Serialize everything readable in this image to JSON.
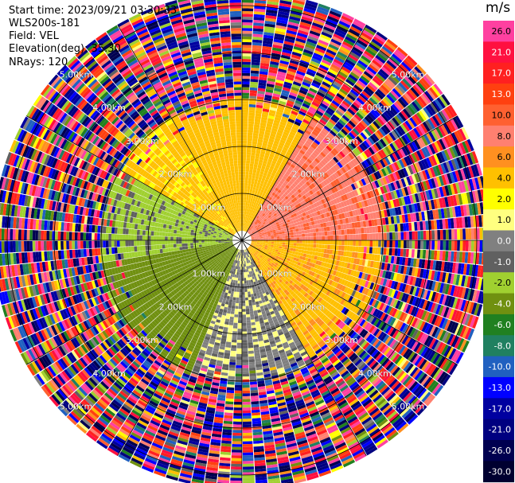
{
  "info": {
    "start_time": "Start time: 2023/09/21 03:30:33",
    "instrument": "WLS200s-181",
    "field": "Field: VEL",
    "elevation": "Elevation(deg): 35.30",
    "nrays": "NRays: 120"
  },
  "colorbar": {
    "unit": "m/s",
    "labels": [
      "26.0",
      "21.0",
      "17.0",
      "13.0",
      "10.0",
      "8.0",
      "6.0",
      "4.0",
      "2.0",
      "1.0",
      "0.0",
      "-1.0",
      "-2.0",
      "-4.0",
      "-6.0",
      "-8.0",
      "-10.0",
      "-13.0",
      "-17.0",
      "-21.0",
      "-26.0",
      "-30.0"
    ],
    "colors": [
      "#ff40a0",
      "#ff1040",
      "#ff2020",
      "#ff4010",
      "#ff6030",
      "#ff8070",
      "#ff9020",
      "#ffc000",
      "#ffff00",
      "#ffff80",
      "#808080",
      "#606060",
      "#a0d030",
      "#709010",
      "#208020",
      "#208060",
      "#2060c0",
      "#0000ff",
      "#0000a0",
      "#000080",
      "#000050",
      "#000030"
    ]
  },
  "chart_data": {
    "type": "heatmap",
    "title": "",
    "field": "VEL",
    "elevation_deg": 35.3,
    "n_rays": 120,
    "units": "m/s",
    "range_rings_km": [
      1.0,
      2.0,
      3.0,
      4.0,
      5.0
    ],
    "ring_label": "km",
    "spoke_angles_deg": [
      0,
      30,
      60,
      90,
      120,
      150,
      180,
      210,
      240,
      270,
      300,
      330
    ],
    "max_range_km": 5.3,
    "clean_range_km": 3.0,
    "velocity_regions": [
      {
        "azimuth_range_deg": [
          300,
          330
        ],
        "velocity_ms": 2.5,
        "description": "yellow"
      },
      {
        "azimuth_range_deg": [
          330,
          30
        ],
        "velocity_ms": 3.0,
        "description": "yellow"
      },
      {
        "azimuth_range_deg": [
          30,
          90
        ],
        "velocity_ms": 7.5,
        "description": "salmon"
      },
      {
        "azimuth_range_deg": [
          90,
          150
        ],
        "velocity_ms": 3.5,
        "description": "yellow"
      },
      {
        "azimuth_range_deg": [
          150,
          200
        ],
        "velocity_ms": -0.5,
        "description": "gray"
      },
      {
        "azimuth_range_deg": [
          200,
          260
        ],
        "velocity_ms": -5.0,
        "description": "green"
      },
      {
        "azimuth_range_deg": [
          260,
          300
        ],
        "velocity_ms": -2.5,
        "description": "light green"
      }
    ]
  }
}
